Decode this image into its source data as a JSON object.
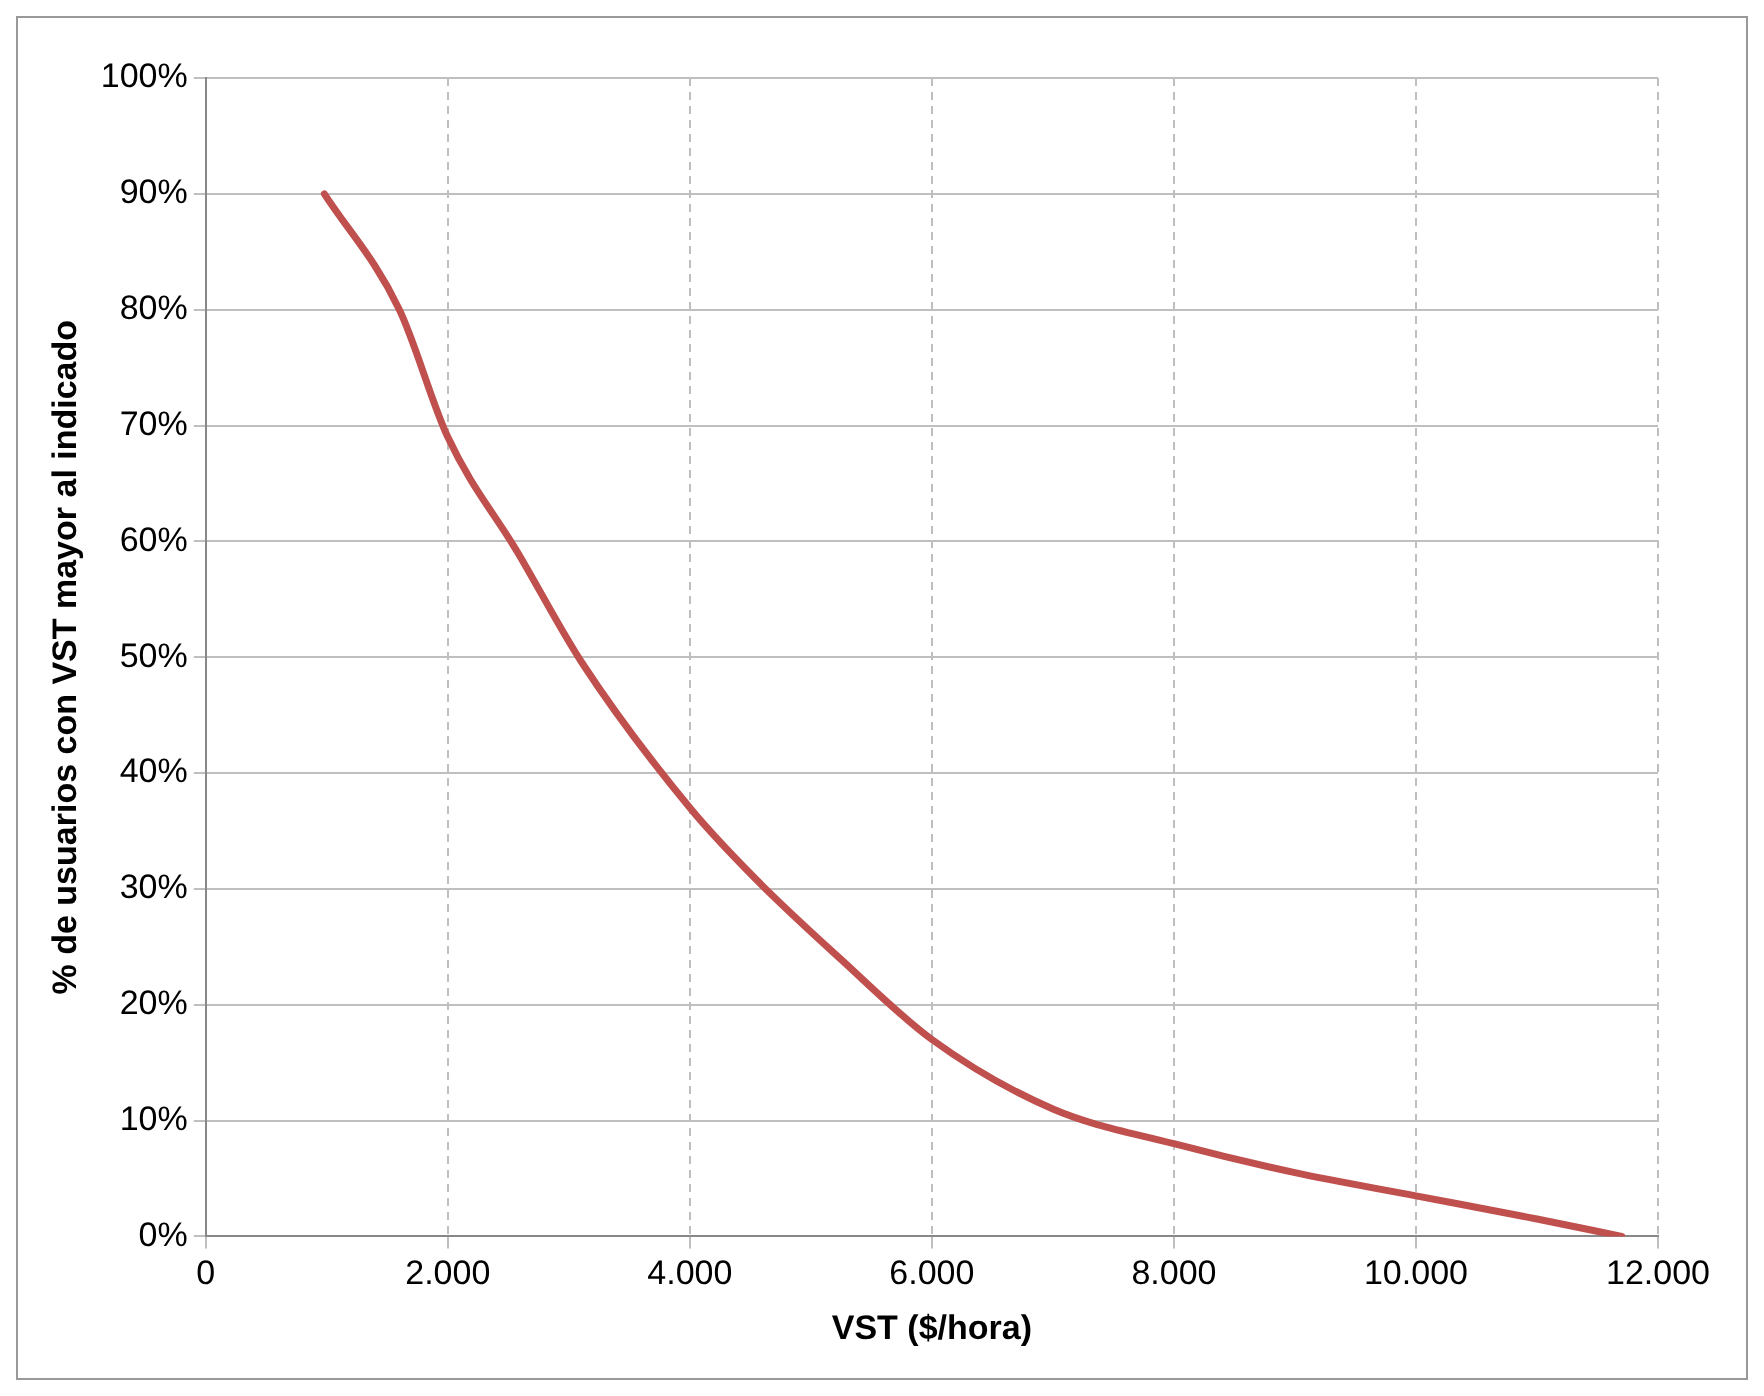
{
  "chart_data": {
    "type": "line",
    "xlabel": "VST ($/hora)",
    "ylabel": "% de usuarios con VST mayor al indicado",
    "x": [
      980,
      1600,
      2000,
      2580,
      3110,
      4000,
      4530,
      5240,
      6000,
      7000,
      8000,
      9000,
      10000,
      11000,
      11700
    ],
    "series": [
      {
        "color": "#c0504d",
        "values": [
          90,
          80,
          69,
          59,
          49.5,
          37,
          31,
          24,
          17,
          11,
          8,
          5.5,
          3.5,
          1.5,
          0
        ]
      }
    ],
    "xlim": [
      0,
      12000
    ],
    "xticks": [
      0,
      {
        "value": 2000,
        "label": "2.000"
      },
      {
        "value": 4000,
        "label": "4.000"
      },
      {
        "value": 6000,
        "label": "6.000"
      },
      {
        "value": 8000,
        "label": "8.000"
      },
      {
        "value": 10000,
        "label": "10.000"
      },
      {
        "value": 12000,
        "label": "12.000"
      }
    ],
    "ylim": [
      0,
      100
    ],
    "yticks": [
      {
        "value": 0,
        "label": "0%"
      },
      {
        "value": 10,
        "label": "10%"
      },
      {
        "value": 20,
        "label": "20%"
      },
      {
        "value": 30,
        "label": "30%"
      },
      {
        "value": 40,
        "label": "40%"
      },
      {
        "value": 50,
        "label": "50%"
      },
      {
        "value": 60,
        "label": "60%"
      },
      {
        "value": 70,
        "label": "70%"
      },
      {
        "value": 80,
        "label": "80%"
      },
      {
        "value": 90,
        "label": "90%"
      },
      {
        "value": 100,
        "label": "100%"
      }
    ],
    "grid": true,
    "legend": false,
    "marker": "none",
    "line_style": "solid"
  }
}
